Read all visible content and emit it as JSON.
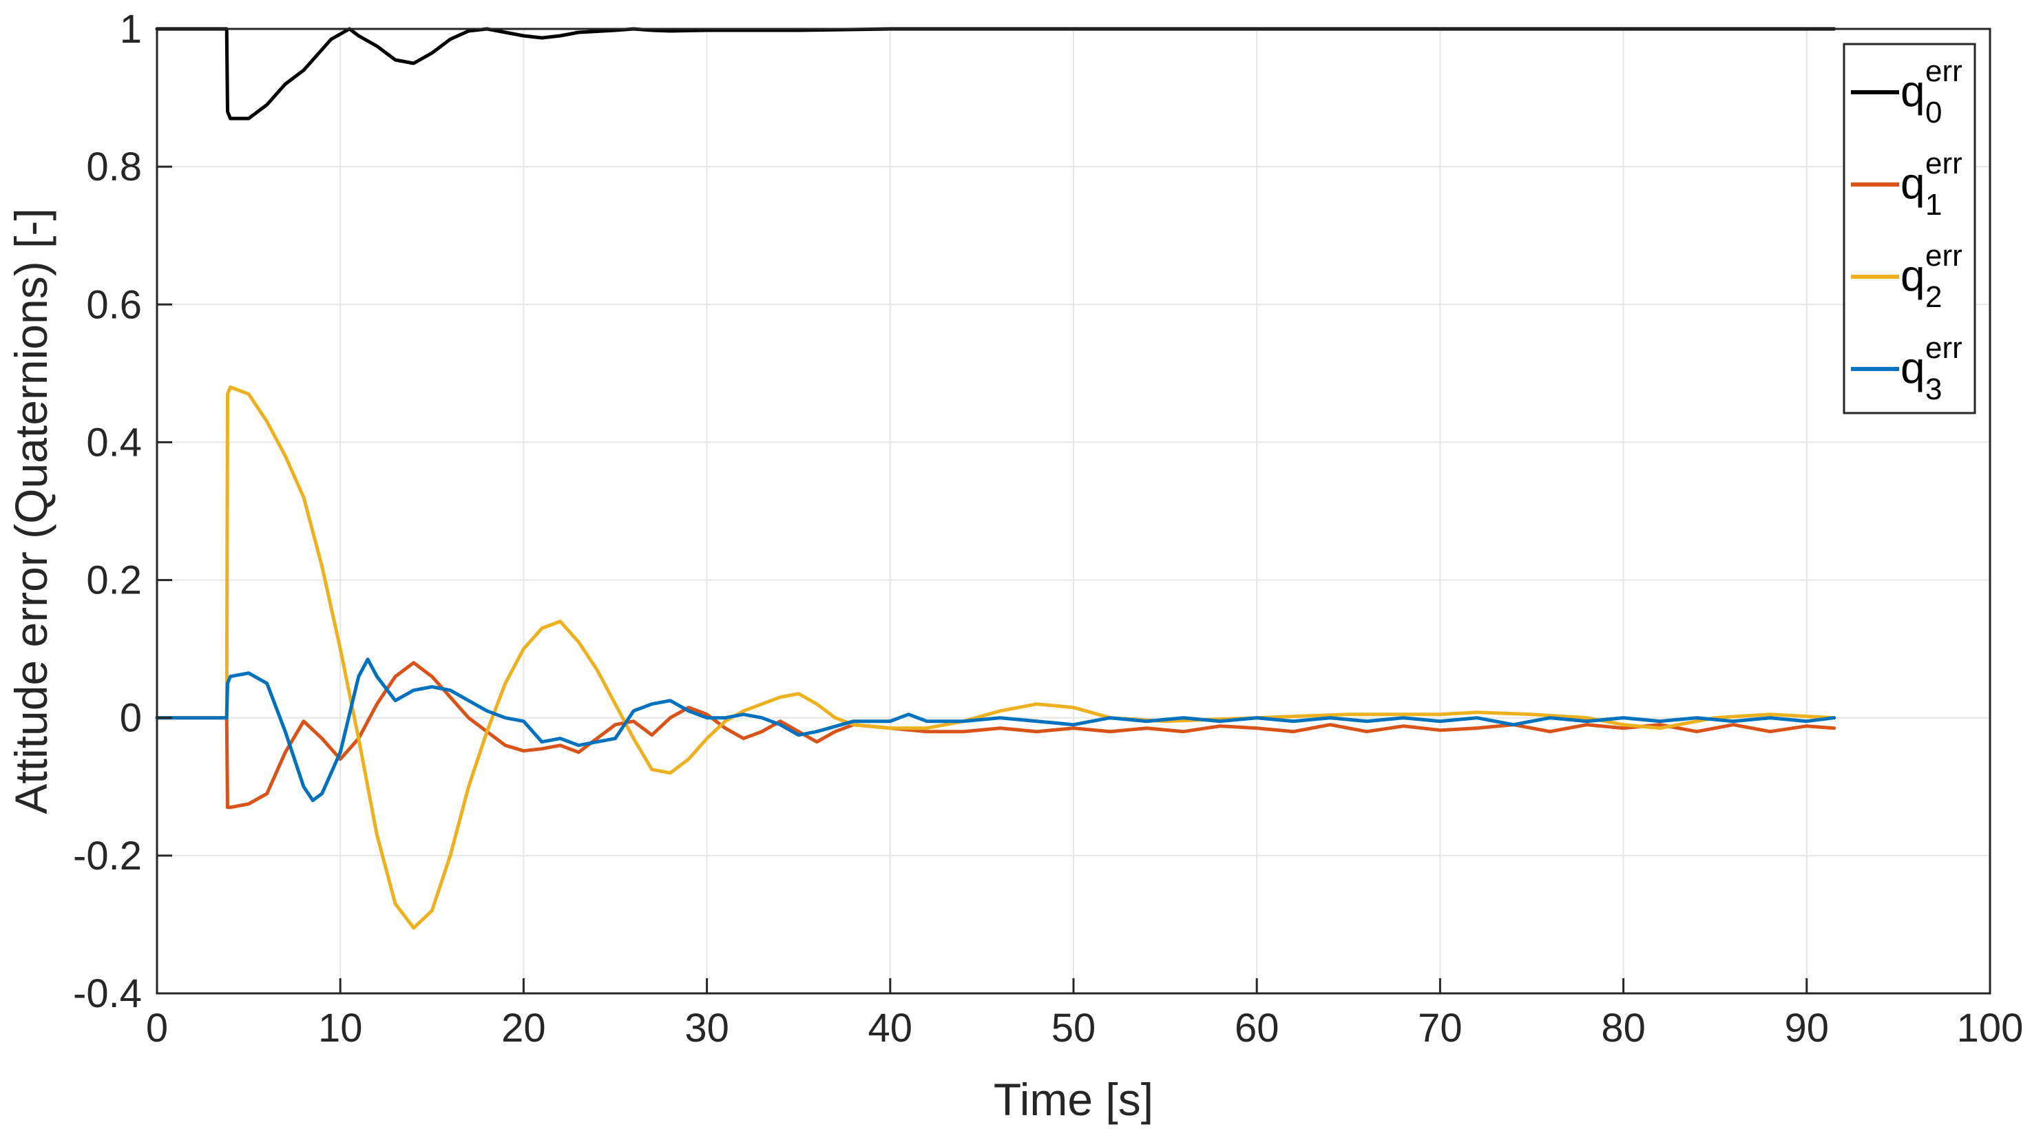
{
  "chart_data": {
    "type": "line",
    "title": "",
    "xlabel": "Time [s]",
    "ylabel": "Attitude error (Quaternions) [-]",
    "xlim": [
      0,
      100
    ],
    "ylim": [
      -0.4,
      1
    ],
    "xticks": [
      0,
      10,
      20,
      30,
      40,
      50,
      60,
      70,
      80,
      90,
      100
    ],
    "xtick_labels": [
      "0",
      "10",
      "20",
      "30",
      "40",
      "50",
      "60",
      "70",
      "80",
      "90",
      "100"
    ],
    "yticks": [
      -0.4,
      -0.2,
      0,
      0.2,
      0.4,
      0.6,
      0.8,
      1
    ],
    "ytick_labels": [
      "-0.4",
      "-0.2",
      "0",
      "0.2",
      "0.4",
      "0.6",
      "0.8",
      "1"
    ],
    "grid": true,
    "legend_position": "top-right",
    "series": [
      {
        "name": "q0err",
        "legend_base": "q",
        "legend_sub": "0",
        "legend_sup": "err",
        "color": "#000000",
        "x": [
          0,
          3.8,
          3.85,
          4,
          5,
          6,
          7,
          8,
          9,
          9.5,
          10.5,
          11,
          12,
          13,
          14,
          15,
          16,
          17,
          18,
          19,
          20,
          21,
          22,
          23,
          25,
          26,
          27,
          28,
          30,
          35,
          40,
          50,
          60,
          70,
          80,
          91.5
        ],
        "y": [
          1,
          1,
          0.88,
          0.87,
          0.87,
          0.89,
          0.92,
          0.94,
          0.97,
          0.985,
          1.0,
          0.99,
          0.975,
          0.955,
          0.95,
          0.965,
          0.985,
          0.997,
          1.0,
          0.995,
          0.99,
          0.987,
          0.99,
          0.995,
          0.998,
          1.0,
          0.998,
          0.997,
          0.998,
          0.998,
          1.0,
          1.0,
          1.0,
          1.0,
          1.0,
          1.0
        ]
      },
      {
        "name": "q1err",
        "legend_base": "q",
        "legend_sub": "1",
        "legend_sup": "err",
        "color": "#D95319",
        "x": [
          0,
          3.8,
          3.85,
          4,
          5,
          6,
          7,
          8,
          9,
          10,
          11,
          12,
          13,
          14,
          15,
          16,
          17,
          18,
          19,
          20,
          21,
          22,
          23,
          24,
          25,
          26,
          27,
          28,
          29,
          30,
          31,
          32,
          33,
          34,
          35,
          36,
          37,
          38,
          40,
          42,
          44,
          46,
          48,
          50,
          52,
          54,
          56,
          58,
          60,
          62,
          64,
          66,
          68,
          70,
          72,
          74,
          76,
          78,
          80,
          82,
          84,
          86,
          88,
          90,
          91.5
        ],
        "y": [
          0,
          0,
          -0.13,
          -0.13,
          -0.125,
          -0.11,
          -0.05,
          -0.005,
          -0.03,
          -0.06,
          -0.03,
          0.02,
          0.06,
          0.08,
          0.06,
          0.03,
          0.0,
          -0.02,
          -0.04,
          -0.048,
          -0.045,
          -0.04,
          -0.05,
          -0.03,
          -0.01,
          -0.005,
          -0.025,
          0.0,
          0.015,
          0.005,
          -0.015,
          -0.03,
          -0.02,
          -0.005,
          -0.02,
          -0.035,
          -0.02,
          -0.01,
          -0.015,
          -0.02,
          -0.02,
          -0.015,
          -0.02,
          -0.015,
          -0.02,
          -0.015,
          -0.02,
          -0.012,
          -0.015,
          -0.02,
          -0.01,
          -0.02,
          -0.012,
          -0.018,
          -0.015,
          -0.01,
          -0.02,
          -0.01,
          -0.015,
          -0.01,
          -0.02,
          -0.01,
          -0.02,
          -0.012,
          -0.015
        ]
      },
      {
        "name": "q2err",
        "legend_base": "q",
        "legend_sub": "2",
        "legend_sup": "err",
        "color": "#EDB120",
        "x": [
          0,
          3.8,
          3.85,
          4,
          5,
          6,
          7,
          8,
          9,
          10,
          11,
          12,
          13,
          14,
          15,
          16,
          17,
          18,
          19,
          20,
          21,
          22,
          23,
          24,
          25,
          26,
          27,
          28,
          29,
          30,
          31,
          32,
          33,
          34,
          35,
          36,
          37,
          38,
          40,
          42,
          44,
          46,
          48,
          50,
          52,
          55,
          60,
          65,
          70,
          72,
          75,
          78,
          80,
          82,
          85,
          88,
          91.5
        ],
        "y": [
          0,
          0,
          0.47,
          0.48,
          0.47,
          0.43,
          0.38,
          0.32,
          0.22,
          0.1,
          -0.03,
          -0.17,
          -0.27,
          -0.305,
          -0.28,
          -0.2,
          -0.1,
          -0.02,
          0.05,
          0.1,
          0.13,
          0.14,
          0.11,
          0.07,
          0.02,
          -0.03,
          -0.075,
          -0.08,
          -0.06,
          -0.03,
          -0.005,
          0.01,
          0.02,
          0.03,
          0.035,
          0.02,
          0.0,
          -0.01,
          -0.015,
          -0.015,
          -0.005,
          0.01,
          0.02,
          0.015,
          0.0,
          -0.005,
          0.0,
          0.005,
          0.005,
          0.008,
          0.005,
          0.0,
          -0.01,
          -0.015,
          0.0,
          0.005,
          0.0
        ]
      },
      {
        "name": "q3err",
        "legend_base": "q",
        "legend_sub": "3",
        "legend_sup": "err",
        "color": "#0072BD",
        "x": [
          0,
          3.8,
          3.85,
          4,
          5,
          6,
          7,
          8,
          8.5,
          9,
          10,
          11,
          11.5,
          12,
          13,
          14,
          15,
          16,
          17,
          18,
          19,
          20,
          21,
          22,
          23,
          24,
          25,
          26,
          27,
          28,
          29,
          30,
          31,
          32,
          33,
          34,
          35,
          36,
          38,
          40,
          41,
          42,
          44,
          46,
          48,
          50,
          52,
          54,
          56,
          58,
          60,
          62,
          64,
          66,
          68,
          70,
          72,
          74,
          76,
          78,
          80,
          82,
          84,
          86,
          88,
          90,
          91.5
        ],
        "y": [
          0,
          0,
          0.05,
          0.06,
          0.065,
          0.05,
          -0.02,
          -0.1,
          -0.12,
          -0.11,
          -0.05,
          0.06,
          0.085,
          0.06,
          0.025,
          0.04,
          0.045,
          0.04,
          0.025,
          0.01,
          0.0,
          -0.005,
          -0.035,
          -0.03,
          -0.04,
          -0.035,
          -0.03,
          0.01,
          0.02,
          0.025,
          0.01,
          0.0,
          0.0,
          0.005,
          0.0,
          -0.01,
          -0.025,
          -0.02,
          -0.005,
          -0.005,
          0.005,
          -0.005,
          -0.005,
          0.0,
          -0.005,
          -0.01,
          0.0,
          -0.005,
          0.0,
          -0.005,
          0.0,
          -0.005,
          0.0,
          -0.005,
          0.0,
          -0.005,
          0.0,
          -0.01,
          0.0,
          -0.005,
          0.0,
          -0.005,
          0.0,
          -0.005,
          0.0,
          -0.005,
          0.0
        ]
      }
    ]
  }
}
